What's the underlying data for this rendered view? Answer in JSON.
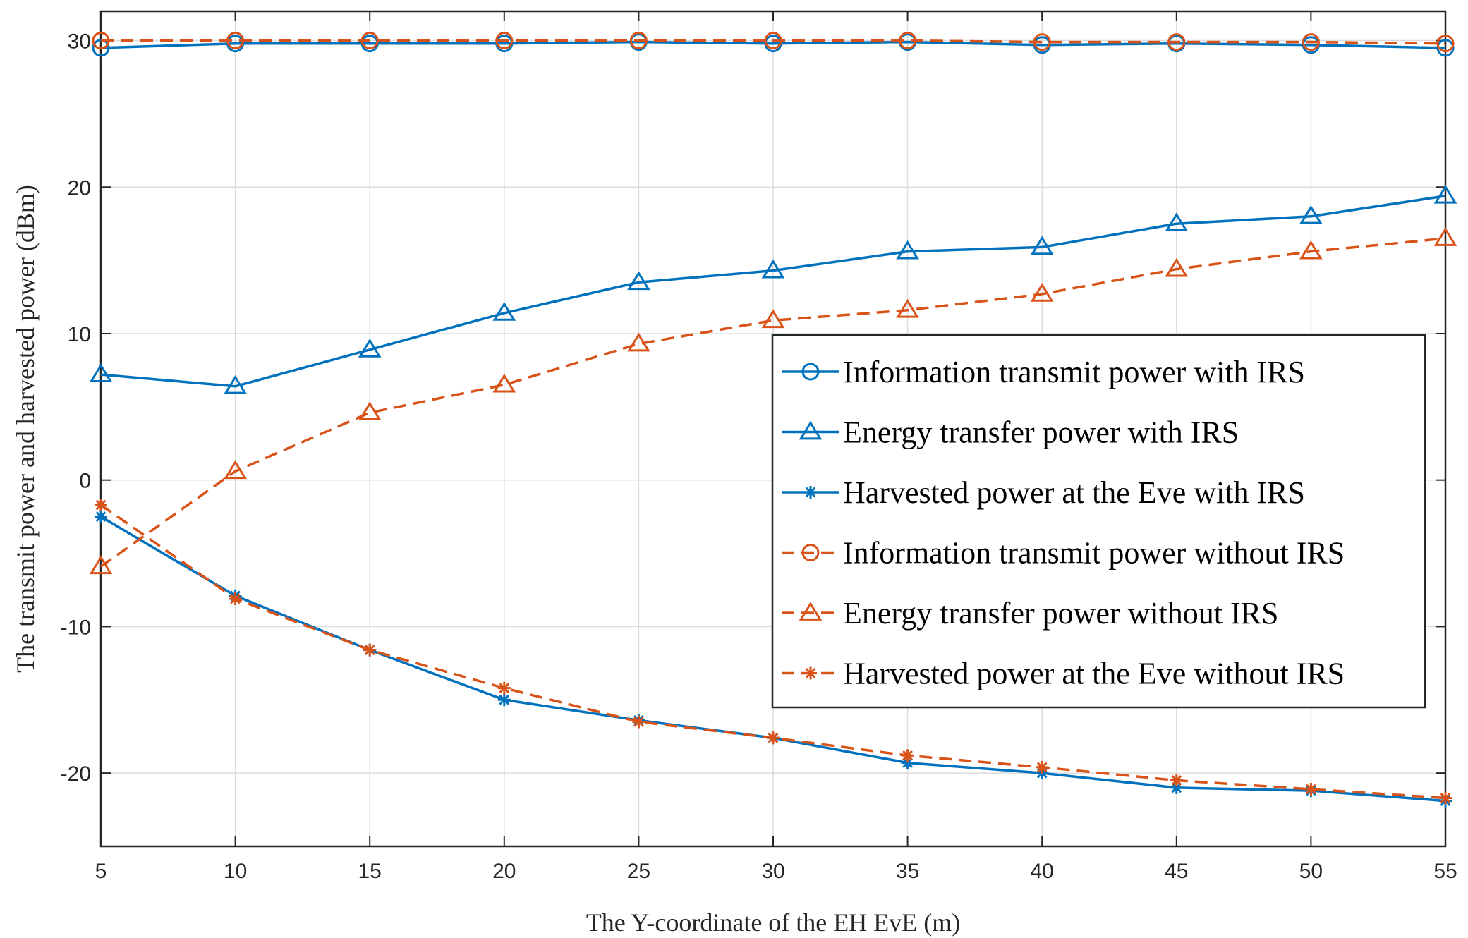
{
  "chart_data": {
    "type": "line",
    "title": "",
    "xlabel": "The Y-coordinate of the EH EvE (m)",
    "ylabel": "The transmit power and harvested power (dBm)",
    "xlim": [
      5,
      55
    ],
    "ylim": [
      -25,
      32
    ],
    "xticks": [
      5,
      10,
      15,
      20,
      25,
      30,
      35,
      40,
      45,
      50,
      55
    ],
    "yticks": [
      -20,
      -10,
      0,
      10,
      20,
      30
    ],
    "x": [
      5,
      10,
      15,
      20,
      25,
      30,
      35,
      40,
      45,
      50,
      55
    ],
    "grid": true,
    "legend_position": "right",
    "colors": {
      "blue": "#0072BD",
      "orange": "#D95319"
    },
    "series": [
      {
        "name": "Information transmit power with IRS",
        "color": "#0072BD",
        "dash": "solid",
        "marker": "circle",
        "values": [
          29.5,
          29.8,
          29.8,
          29.8,
          29.9,
          29.8,
          29.9,
          29.7,
          29.8,
          29.7,
          29.5
        ]
      },
      {
        "name": "Energy transfer power with IRS",
        "color": "#0072BD",
        "dash": "solid",
        "marker": "triangle",
        "values": [
          7.2,
          6.4,
          8.9,
          11.4,
          13.5,
          14.3,
          15.6,
          15.9,
          17.5,
          18.0,
          19.4
        ]
      },
      {
        "name": "Harvested power at the Eve with IRS",
        "color": "#0072BD",
        "dash": "solid",
        "marker": "asterisk",
        "values": [
          -2.5,
          -7.9,
          -11.6,
          -15.0,
          -16.4,
          -17.6,
          -19.3,
          -20.0,
          -21.0,
          -21.2,
          -21.9
        ]
      },
      {
        "name": "Information transmit power without IRS",
        "color": "#D95319",
        "dash": "dashed",
        "marker": "circle",
        "values": [
          30.0,
          30.0,
          30.0,
          30.0,
          30.0,
          30.0,
          30.0,
          29.9,
          29.9,
          29.9,
          29.8
        ]
      },
      {
        "name": "Energy transfer power without IRS",
        "color": "#D95319",
        "dash": "dashed",
        "marker": "triangle",
        "values": [
          -5.9,
          0.6,
          4.6,
          6.5,
          9.3,
          10.9,
          11.6,
          12.7,
          14.4,
          15.6,
          16.5
        ]
      },
      {
        "name": "Harvested power at the Eve without IRS",
        "color": "#D95319",
        "dash": "dashed",
        "marker": "asterisk",
        "values": [
          -1.7,
          -8.1,
          -11.6,
          -14.2,
          -16.5,
          -17.6,
          -18.8,
          -19.6,
          -20.5,
          -21.1,
          -21.7
        ]
      }
    ]
  }
}
